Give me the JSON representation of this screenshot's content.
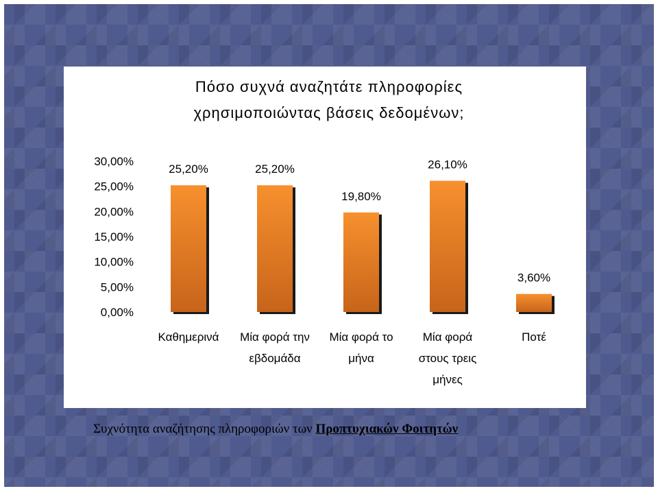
{
  "chart_data": {
    "type": "bar",
    "title_line1": "Πόσο συχνά αναζητάτε πληροφορίες",
    "title_line2": "χρησιμοποιώντας βάσεις δεδομένων;",
    "categories": [
      [
        "Καθημερινά"
      ],
      [
        "Μία φορά την",
        "εβδομάδα"
      ],
      [
        "Μία φορά το",
        "μήνα"
      ],
      [
        "Μία φορά",
        "στους τρεις",
        "μήνες"
      ],
      [
        "Ποτέ"
      ]
    ],
    "values": [
      25.2,
      25.2,
      19.8,
      26.1,
      3.6
    ],
    "data_labels": [
      "25,20%",
      "25,20%",
      "19,80%",
      "26,10%",
      "3,60%"
    ],
    "y_ticks": [
      "0,00%",
      "5,00%",
      "10,00%",
      "15,00%",
      "20,00%",
      "25,00%",
      "30,00%"
    ],
    "ylim": [
      0,
      30
    ],
    "grid": false,
    "colors": {
      "bar": "#f7902e",
      "bar_dark": "#c7641a",
      "shadow": "#1a1a1a"
    }
  },
  "caption": {
    "part1": "Συχνότητα αναζήτησης πληροφοριών των ",
    "part2": "Προπτυχιακών Φοιτητών"
  }
}
